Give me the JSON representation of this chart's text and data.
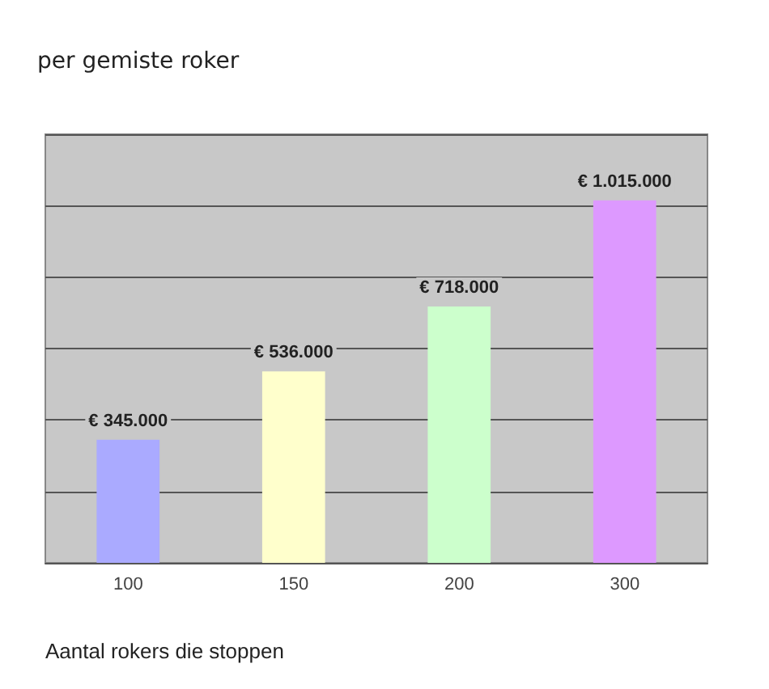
{
  "chart_data": {
    "type": "bar",
    "title": "per gemiste roker",
    "xlabel": "Aantal rokers die stoppen",
    "categories": [
      "100",
      "150",
      "200",
      "300"
    ],
    "values": [
      345000,
      536000,
      718000,
      1015000
    ],
    "colors": [
      "#aaaaff",
      "#ffffcc",
      "#ccffcc",
      "#dd99ff"
    ],
    "value_labels": [
      "€ 345.000",
      "€ 536.000",
      "€ 718.000",
      "€ 1.015.000"
    ],
    "grid": "y",
    "tick_labels": "x"
  }
}
